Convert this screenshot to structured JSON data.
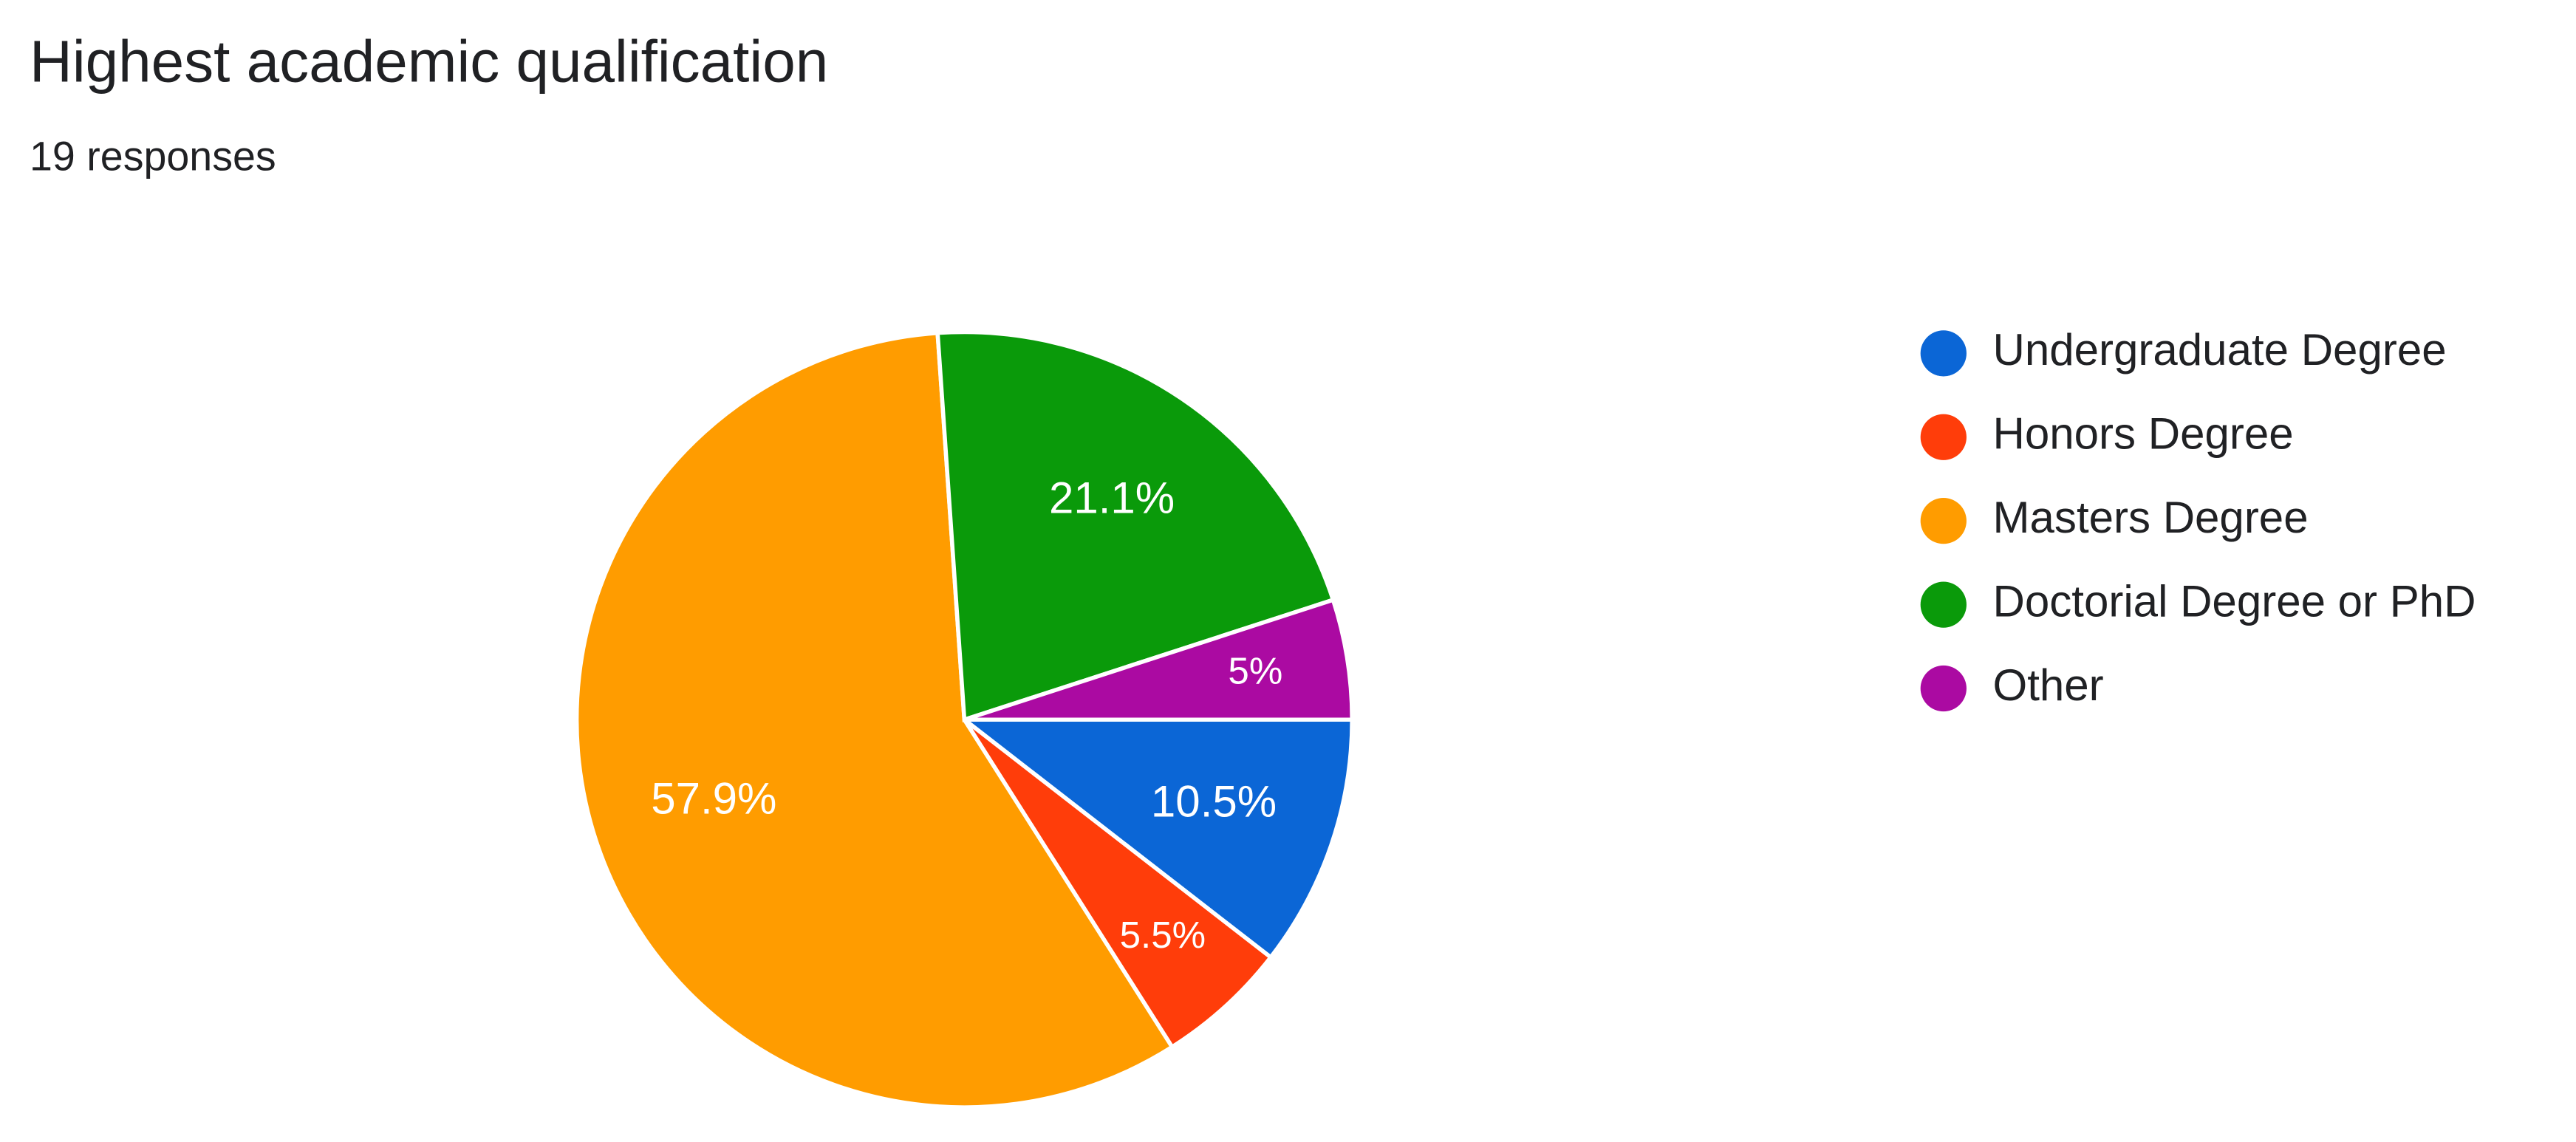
{
  "chart_data": {
    "type": "pie",
    "title": "Highest academic qualification",
    "subtitle": "19 responses",
    "categories": [
      "Undergraduate Degree",
      "Honors Degree",
      "Masters Degree",
      "Doctorial Degree or PhD",
      "Other"
    ],
    "values": [
      10.5,
      5.5,
      57.9,
      21.1,
      5
    ],
    "value_labels": [
      "10.5%",
      "5.5%",
      "57.9%",
      "21.1%",
      "5%"
    ],
    "colors": [
      "#0b66d6",
      "#ff3d0a",
      "#ff9c00",
      "#0a9a0a",
      "#ab0aa2"
    ],
    "legend": "right"
  }
}
